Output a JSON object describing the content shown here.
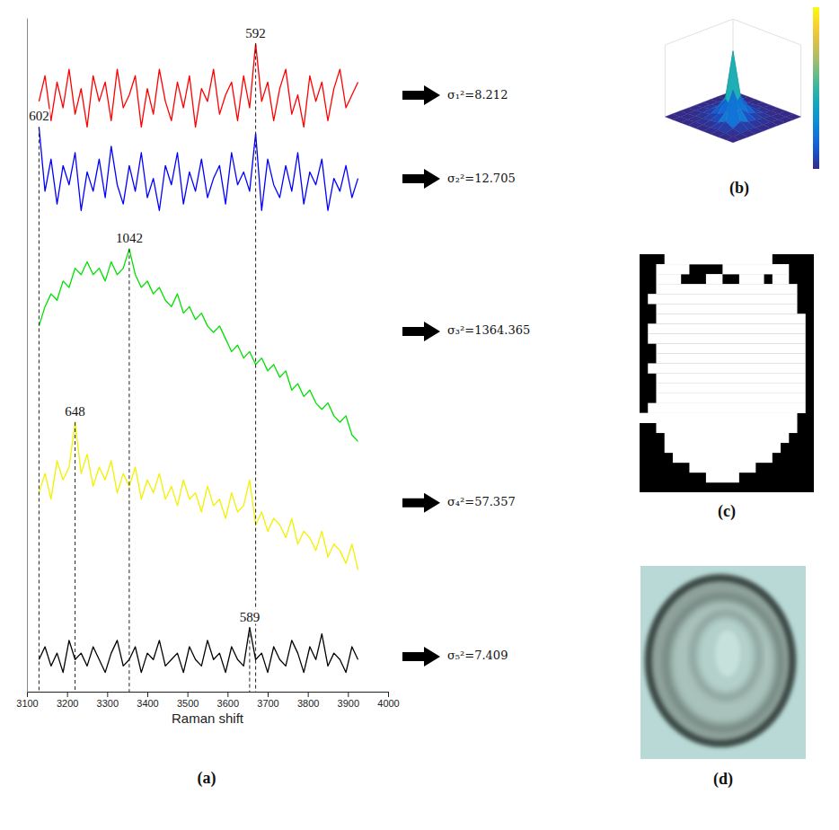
{
  "chart_data": [
    {
      "type": "line",
      "panel": "(a)",
      "xlabel": "Raman shift",
      "xlim": [
        3100,
        4000
      ],
      "xticks": [
        3100,
        3200,
        3300,
        3400,
        3500,
        3600,
        3700,
        3800,
        3900,
        4000
      ],
      "ylim": [
        0,
        105
      ],
      "tick_labels": "x",
      "x": [
        3130,
        3145,
        3160,
        3175,
        3190,
        3205,
        3220,
        3235,
        3250,
        3265,
        3280,
        3295,
        3310,
        3325,
        3340,
        3355,
        3370,
        3385,
        3400,
        3415,
        3430,
        3445,
        3460,
        3475,
        3490,
        3505,
        3520,
        3535,
        3550,
        3565,
        3580,
        3595,
        3610,
        3625,
        3640,
        3655,
        3670,
        3685,
        3700,
        3715,
        3730,
        3745,
        3760,
        3775,
        3790,
        3805,
        3820,
        3835,
        3850,
        3865,
        3880,
        3895,
        3910,
        3925
      ],
      "series": [
        {
          "color": "#ff0000",
          "label": "σ₁²=8.212",
          "values": [
            92,
            96,
            89,
            95,
            91,
            97,
            90,
            94,
            88,
            96,
            92,
            95,
            89,
            97,
            91,
            93,
            96,
            88,
            94,
            90,
            97,
            92,
            89,
            95,
            91,
            96,
            88,
            94,
            92,
            97,
            90,
            93,
            95,
            89,
            96,
            91,
            101,
            92,
            95,
            89,
            94,
            97,
            90,
            93,
            88,
            96,
            92,
            95,
            89,
            94,
            97,
            91,
            93,
            95
          ],
          "peaks": [
            {
              "x": 3670,
              "label": "592"
            }
          ]
        },
        {
          "color": "#0000ff",
          "label": "σ₂²=12.705",
          "values": [
            88,
            78,
            83,
            76,
            82,
            79,
            84,
            75,
            81,
            78,
            83,
            77,
            85,
            79,
            76,
            82,
            78,
            84,
            77,
            80,
            75,
            82,
            79,
            84,
            76,
            81,
            78,
            83,
            77,
            80,
            82,
            76,
            84,
            79,
            81,
            78,
            87,
            75,
            83,
            79,
            77,
            82,
            78,
            84,
            76,
            81,
            79,
            83,
            75,
            80,
            78,
            82,
            77,
            80
          ],
          "peaks": [
            {
              "x": 3130,
              "label": "602"
            }
          ]
        },
        {
          "color": "#00e000",
          "label": "σ₃²=1364.365",
          "values": [
            57,
            60,
            62,
            61,
            64,
            63,
            66,
            65,
            67,
            65,
            66,
            64,
            67,
            65,
            66,
            69,
            65,
            63,
            64,
            62,
            63,
            61,
            60,
            62,
            59,
            60,
            58,
            59,
            57,
            56,
            57,
            55,
            53,
            54,
            52,
            53,
            51,
            52,
            50,
            51,
            49,
            50,
            47,
            48,
            46,
            47,
            45,
            44,
            45,
            43,
            42,
            43,
            40,
            39
          ],
          "peaks": [
            {
              "x": 3355,
              "label": "1042"
            }
          ]
        },
        {
          "color": "#f2f200",
          "label": "σ₄²=57.357",
          "values": [
            31,
            34,
            30,
            36,
            33,
            35,
            42,
            34,
            37,
            32,
            35,
            33,
            36,
            31,
            34,
            32,
            35,
            30,
            33,
            31,
            34,
            30,
            32,
            29,
            33,
            30,
            31,
            28,
            32,
            29,
            30,
            27,
            31,
            28,
            29,
            33,
            26,
            28,
            25,
            27,
            26,
            24,
            27,
            23,
            25,
            24,
            22,
            25,
            21,
            23,
            22,
            20,
            23,
            19
          ],
          "peaks": [
            {
              "x": 3220,
              "label": "648"
            }
          ]
        },
        {
          "color": "#000000",
          "label": "σ₅²=7.409",
          "values": [
            5,
            7,
            4,
            6,
            3,
            8,
            5,
            6,
            4,
            7,
            5,
            3,
            6,
            8,
            4,
            5,
            7,
            3,
            6,
            5,
            8,
            4,
            5,
            6,
            3,
            7,
            5,
            4,
            8,
            5,
            6,
            3,
            7,
            5,
            4,
            10,
            5,
            6,
            3,
            7,
            5,
            4,
            8,
            6,
            3,
            7,
            5,
            9,
            4,
            6,
            5,
            3,
            7,
            5
          ],
          "peaks": [
            {
              "x": 3655,
              "label": "589"
            }
          ]
        }
      ]
    },
    {
      "type": "surface",
      "panel": "(b)",
      "tick_labels": false,
      "zlim": [
        0,
        9
      ],
      "z": [
        [
          0,
          0,
          0,
          0,
          0,
          0,
          0,
          0,
          0,
          0
        ],
        [
          0,
          0,
          0,
          0,
          0.1,
          0.1,
          0,
          0,
          0,
          0
        ],
        [
          0,
          0,
          0.1,
          0.2,
          0.4,
          0.3,
          0.2,
          0.1,
          0,
          0
        ],
        [
          0,
          0.1,
          0.2,
          0.8,
          2,
          1.2,
          0.5,
          0.2,
          0.1,
          0
        ],
        [
          0,
          0.1,
          0.4,
          2,
          9,
          3,
          1,
          0.4,
          0.1,
          0
        ],
        [
          0,
          0.1,
          0.3,
          1,
          2.5,
          1.5,
          2,
          0.5,
          0.1,
          0
        ],
        [
          0,
          0.1,
          0.2,
          0.4,
          0.8,
          1.5,
          5,
          1,
          0.2,
          0
        ],
        [
          0,
          0,
          0.1,
          0.2,
          0.3,
          0.4,
          1,
          0.4,
          0.1,
          0
        ],
        [
          0,
          0,
          0,
          0.1,
          0.1,
          0.1,
          0.2,
          0.1,
          0,
          0
        ],
        [
          0,
          0,
          0,
          0,
          0,
          0,
          0,
          0,
          0,
          0
        ]
      ]
    }
  ],
  "mask": {
    "panel": "(c)",
    "cols": 21,
    "rows": 24,
    "white": [
      [
        [
          3,
          15
        ]
      ],
      [
        [
          2,
          5
        ],
        [
          10,
          17
        ]
      ],
      [
        [
          2,
          4
        ],
        [
          8,
          9
        ],
        [
          12,
          14
        ],
        [
          16,
          17
        ]
      ],
      [
        [
          2,
          18
        ]
      ],
      [
        [
          1,
          18
        ]
      ],
      [
        [
          2,
          18
        ]
      ],
      [
        [
          2,
          19
        ]
      ],
      [
        [
          1,
          19
        ]
      ],
      [
        [
          1,
          19
        ]
      ],
      [
        [
          2,
          19
        ]
      ],
      [
        [
          2,
          19
        ]
      ],
      [
        [
          1,
          19
        ]
      ],
      [
        [
          2,
          19
        ]
      ],
      [
        [
          2,
          19
        ]
      ],
      [
        [
          2,
          19
        ]
      ],
      [
        [
          1,
          19
        ]
      ],
      [
        [
          0,
          18
        ]
      ],
      [
        [
          2,
          18
        ]
      ],
      [
        [
          3,
          17
        ]
      ],
      [
        [
          3,
          16
        ]
      ],
      [
        [
          4,
          15
        ]
      ],
      [
        [
          6,
          13
        ]
      ],
      [
        [
          8,
          11
        ]
      ],
      []
    ]
  },
  "micrograph": {
    "panel": "(d)"
  }
}
